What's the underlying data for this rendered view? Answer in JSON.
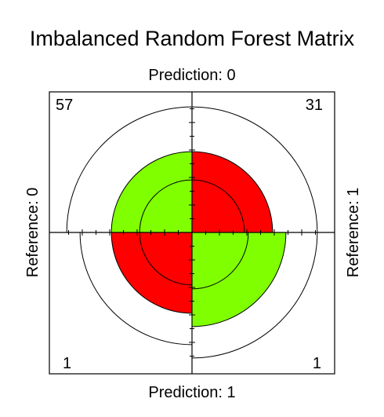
{
  "chart_data": {
    "type": "fourfold",
    "title": "Imbalanced Random Forest Matrix",
    "top_label": "Prediction: 0",
    "bottom_label": "Prediction: 1",
    "left_label": "Reference: 0",
    "right_label": "Reference: 1",
    "cells": [
      {
        "quadrant": "top-left",
        "value": 57,
        "label": "57",
        "standardized_radius": 0.605,
        "color": "#7fff00"
      },
      {
        "quadrant": "top-right",
        "value": 31,
        "label": "31",
        "standardized_radius": 0.605,
        "color": "#ff0000"
      },
      {
        "quadrant": "bottom-left",
        "value": 1,
        "label": "1",
        "standardized_radius": 0.605,
        "color": "#ff0000"
      },
      {
        "quadrant": "bottom-right",
        "value": 1,
        "label": "1",
        "standardized_radius": 0.705,
        "color": "#7fff00"
      }
    ],
    "confidence_rings": true,
    "colors": {
      "positive": "#7fff00",
      "negative": "#ff0000",
      "ink": "#000000"
    }
  }
}
